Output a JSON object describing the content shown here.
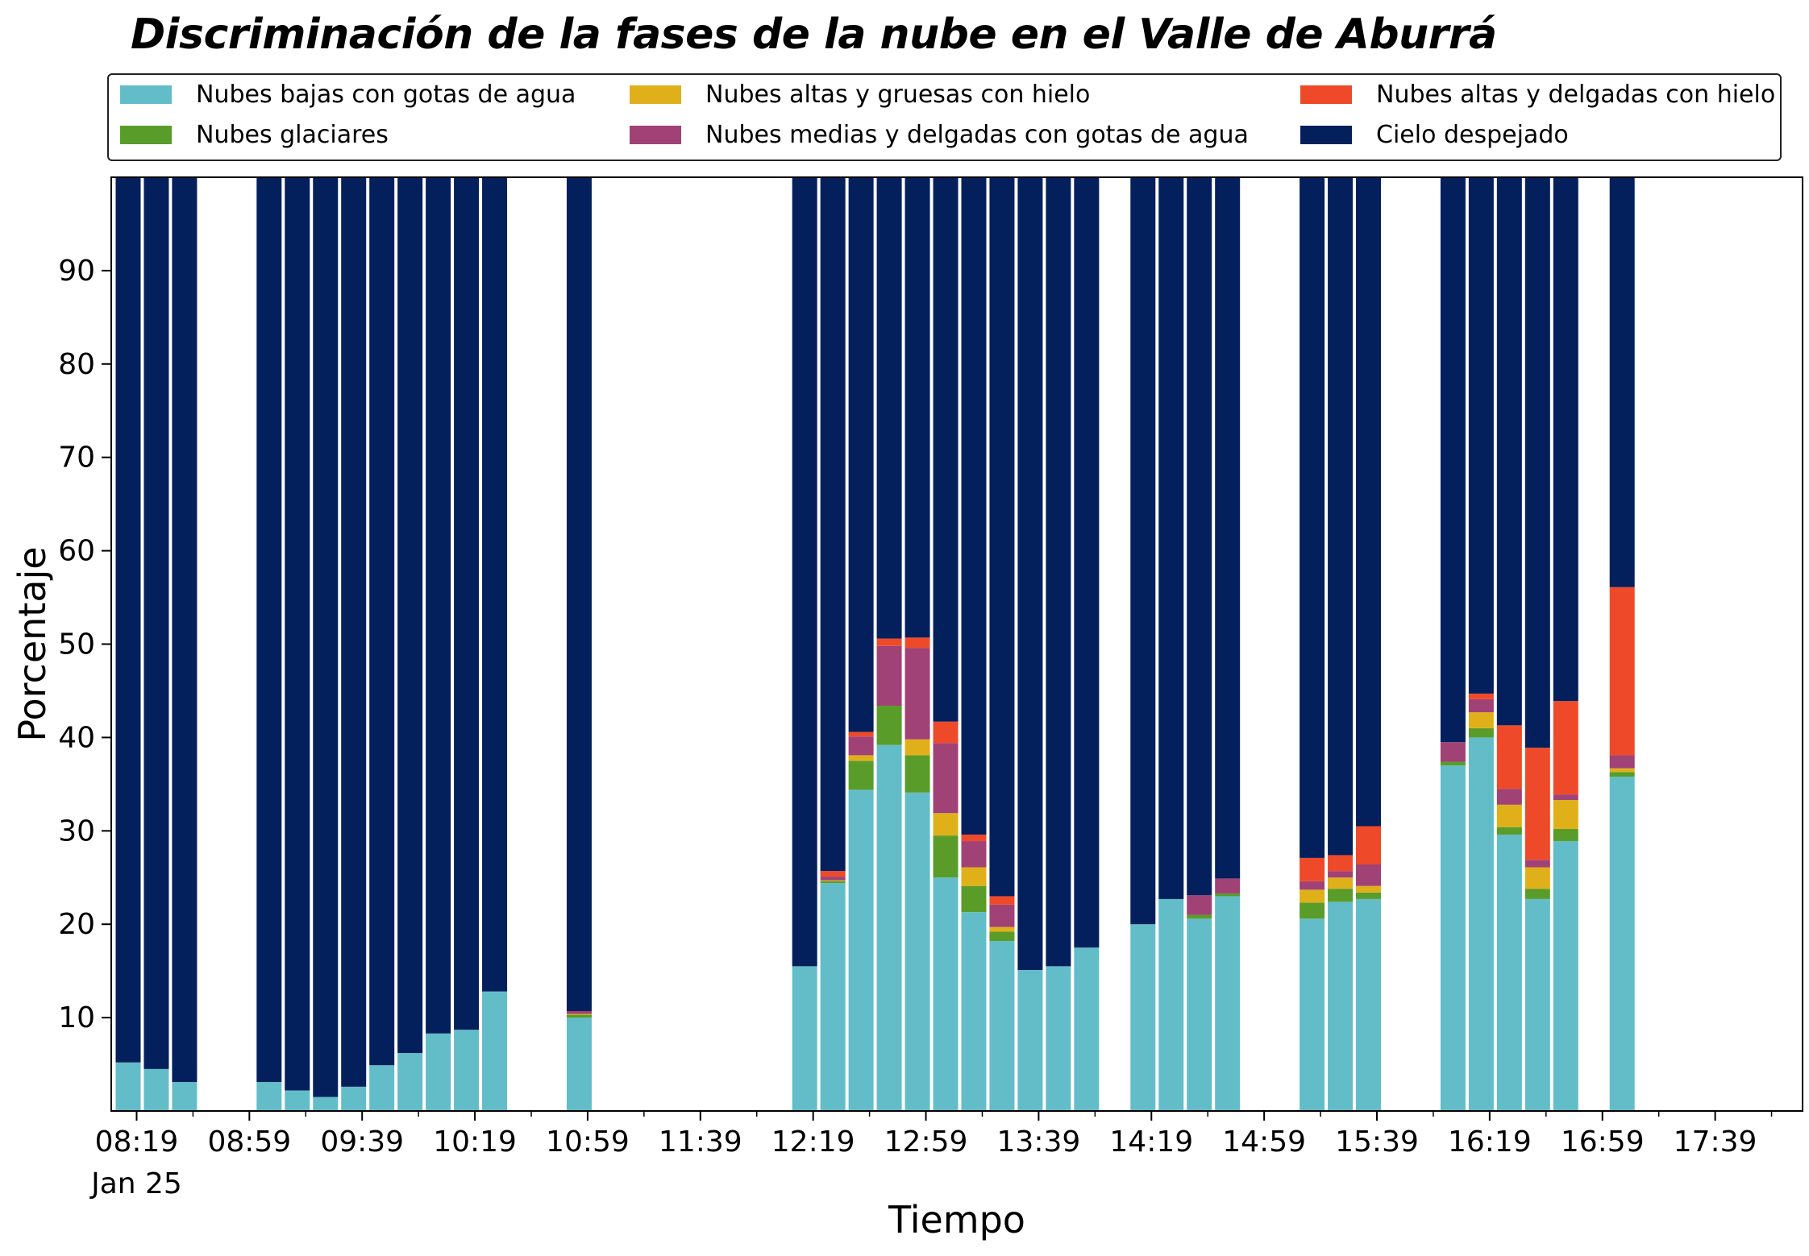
{
  "chart_data": {
    "type": "bar",
    "stacked": true,
    "title": "Discriminación de la fases de la nube en el Valle de Aburrá",
    "xlabel": "Tiempo",
    "ylabel": "Porcentaje",
    "ylim": [
      0,
      100
    ],
    "yticks": [
      10,
      20,
      30,
      40,
      50,
      60,
      70,
      80,
      90
    ],
    "grid": false,
    "legend_position": "top",
    "x_min_minutes": 490,
    "x_max_minutes": 1090,
    "x_ticks": [
      {
        "minutes": 499,
        "label": "08:19",
        "sublabel": "Jan 25"
      },
      {
        "minutes": 539,
        "label": "08:59"
      },
      {
        "minutes": 579,
        "label": "09:39"
      },
      {
        "minutes": 619,
        "label": "10:19"
      },
      {
        "minutes": 659,
        "label": "10:59"
      },
      {
        "minutes": 699,
        "label": "11:39"
      },
      {
        "minutes": 739,
        "label": "12:19"
      },
      {
        "minutes": 779,
        "label": "12:59"
      },
      {
        "minutes": 819,
        "label": "13:39"
      },
      {
        "minutes": 859,
        "label": "14:19"
      },
      {
        "minutes": 899,
        "label": "14:59"
      },
      {
        "minutes": 939,
        "label": "15:39"
      },
      {
        "minutes": 979,
        "label": "16:19"
      },
      {
        "minutes": 1019,
        "label": "16:59"
      },
      {
        "minutes": 1059,
        "label": "17:39"
      }
    ],
    "times": [
      "08:16",
      "08:26",
      "08:36",
      "09:06",
      "09:16",
      "09:26",
      "09:36",
      "09:46",
      "09:56",
      "10:06",
      "10:16",
      "10:26",
      "10:56",
      "12:16",
      "12:26",
      "12:36",
      "12:46",
      "12:56",
      "13:06",
      "13:16",
      "13:26",
      "13:36",
      "13:46",
      "13:56",
      "14:16",
      "14:26",
      "14:36",
      "14:46",
      "15:16",
      "15:26",
      "15:36",
      "16:06",
      "16:16",
      "16:26",
      "16:36",
      "16:46",
      "17:06"
    ],
    "series": [
      {
        "name": "Nubes bajas con gotas de agua",
        "color": "#63bdc8",
        "values": [
          5.2,
          4.5,
          3.1,
          3.1,
          2.2,
          1.5,
          2.6,
          4.9,
          6.2,
          8.3,
          8.7,
          12.8,
          10.0,
          15.5,
          24.4,
          34.4,
          39.2,
          34.1,
          25.0,
          21.3,
          18.2,
          15.1,
          15.5,
          17.5,
          20.0,
          22.7,
          20.6,
          23.0,
          20.6,
          22.4,
          22.7,
          37.0,
          40.0,
          29.6,
          22.7,
          28.9,
          35.8
        ]
      },
      {
        "name": "Nubes glaciares",
        "color": "#5a9c2a",
        "values": [
          0,
          0,
          0,
          0,
          0,
          0,
          0,
          0,
          0,
          0,
          0,
          0,
          0.3,
          0,
          0.2,
          3.1,
          4.2,
          4.0,
          4.5,
          2.8,
          1.0,
          0,
          0,
          0,
          0,
          0,
          0.4,
          0.3,
          1.7,
          1.4,
          0.7,
          0.4,
          1.0,
          0.8,
          1.1,
          1.3,
          0.5
        ]
      },
      {
        "name": "Nubes altas y gruesas con hielo",
        "color": "#e0b01b",
        "values": [
          0,
          0,
          0,
          0,
          0,
          0,
          0,
          0,
          0,
          0,
          0,
          0,
          0.1,
          0,
          0.1,
          0.6,
          0,
          1.7,
          2.4,
          2.0,
          0.5,
          0,
          0,
          0,
          0,
          0,
          0,
          0,
          1.4,
          1.2,
          0.7,
          0,
          1.7,
          2.4,
          2.3,
          3.1,
          0.4
        ]
      },
      {
        "name": "Nubes medias y delgadas con gotas de agua",
        "color": "#a04276",
        "values": [
          0,
          0,
          0,
          0,
          0,
          0,
          0,
          0,
          0,
          0,
          0,
          0,
          0.3,
          0,
          0.4,
          2.0,
          6.4,
          9.8,
          7.5,
          2.8,
          2.4,
          0,
          0,
          0,
          0,
          0,
          2.1,
          1.6,
          0.9,
          0.7,
          2.3,
          2.1,
          1.4,
          1.7,
          0.8,
          0.6,
          1.4
        ]
      },
      {
        "name": "Nubes altas y delgadas con hielo",
        "color": "#ee4a2a",
        "values": [
          0,
          0,
          0,
          0,
          0,
          0,
          0,
          0,
          0,
          0,
          0,
          0,
          0,
          0,
          0.6,
          0.5,
          0.8,
          1.1,
          2.3,
          0.7,
          0.9,
          0,
          0,
          0,
          0,
          0,
          0,
          0,
          2.5,
          1.7,
          4.1,
          0,
          0.6,
          6.8,
          12.0,
          10.0,
          18.0
        ]
      },
      {
        "name": "Cielo despejado",
        "color": "#03205c",
        "values": [
          94.8,
          95.5,
          96.9,
          96.9,
          97.8,
          98.5,
          97.4,
          95.1,
          93.8,
          91.7,
          91.3,
          87.2,
          89.3,
          84.5,
          74.3,
          59.4,
          49.4,
          49.3,
          58.3,
          70.4,
          77.0,
          84.9,
          84.5,
          82.5,
          80.0,
          77.3,
          76.9,
          75.1,
          72.9,
          72.6,
          69.5,
          60.5,
          55.3,
          58.7,
          61.1,
          56.1,
          43.9
        ]
      }
    ]
  }
}
